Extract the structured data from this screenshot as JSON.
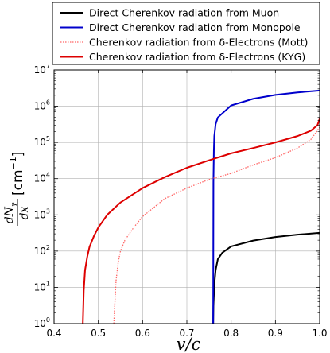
{
  "chart_data": {
    "type": "line",
    "xlabel": "v/c",
    "ylabel": {
      "numerator": "dN",
      "numerator_sub": "γ",
      "denominator": "dx",
      "unit": "[cm",
      "unit_exp": "−1",
      "unit_close": "]"
    },
    "xlim": [
      0.4,
      1.0
    ],
    "ylim": [
      1,
      10000000
    ],
    "yscale": "log",
    "grid": true,
    "legend_position": "top",
    "x_ticks": [
      0.4,
      0.5,
      0.6,
      0.7,
      0.8,
      0.9,
      1.0
    ],
    "x_tick_labels": [
      "0.4",
      "0.5",
      "0.6",
      "0.7",
      "0.8",
      "0.9",
      "1.0"
    ],
    "y_ticks": [
      1,
      10,
      100,
      1000,
      10000,
      100000,
      1000000,
      10000000
    ],
    "y_tick_labels": [
      {
        "base": "10",
        "exp": "0"
      },
      {
        "base": "10",
        "exp": "1"
      },
      {
        "base": "10",
        "exp": "2"
      },
      {
        "base": "10",
        "exp": "3"
      },
      {
        "base": "10",
        "exp": "4"
      },
      {
        "base": "10",
        "exp": "5"
      },
      {
        "base": "10",
        "exp": "6"
      },
      {
        "base": "10",
        "exp": "7"
      }
    ],
    "series": [
      {
        "name": "Direct Cherenkov radiation from Muon",
        "color": "#000000",
        "dash": "solid",
        "x": [
          0.7595,
          0.76,
          0.762,
          0.765,
          0.77,
          0.78,
          0.79,
          0.8,
          0.85,
          0.9,
          0.95,
          1.0
        ],
        "y": [
          1,
          3,
          12,
          30,
          60,
          90,
          110,
          135,
          195,
          245,
          285,
          320
        ]
      },
      {
        "name": "Direct Cherenkov radiation from Monopole",
        "color": "#0000cc",
        "dash": "solid",
        "x": [
          0.7595,
          0.76,
          0.761,
          0.762,
          0.765,
          0.77,
          0.8,
          0.85,
          0.9,
          0.95,
          1.0
        ],
        "y": [
          1,
          8000,
          60000,
          150000,
          320000,
          490000,
          1050000,
          1600000,
          2050000,
          2400000,
          2700000
        ]
      },
      {
        "name": "Cherenkov radiation from δ-Electrons (Mott)",
        "color": "#ff6666",
        "dash": "dotted",
        "x": [
          0.535,
          0.537,
          0.54,
          0.545,
          0.55,
          0.56,
          0.58,
          0.6,
          0.65,
          0.7,
          0.75,
          0.8,
          0.85,
          0.9,
          0.95,
          0.98,
          1.0
        ],
        "y": [
          1,
          3,
          15,
          50,
          100,
          200,
          450,
          900,
          2800,
          5500,
          9500,
          14000,
          24000,
          38000,
          70000,
          120000,
          260000
        ]
      },
      {
        "name": "Cherenkov radiation from δ-Electrons (KYG)",
        "color": "#dd0000",
        "dash": "solid",
        "x": [
          0.465,
          0.467,
          0.47,
          0.475,
          0.48,
          0.49,
          0.5,
          0.52,
          0.55,
          0.6,
          0.65,
          0.7,
          0.75,
          0.8,
          0.85,
          0.9,
          0.95,
          0.98,
          0.995,
          1.0
        ],
        "y": [
          1,
          8,
          30,
          70,
          130,
          260,
          450,
          1000,
          2200,
          5500,
          11000,
          20000,
          32000,
          50000,
          70000,
          100000,
          150000,
          210000,
          300000,
          450000
        ]
      }
    ]
  }
}
